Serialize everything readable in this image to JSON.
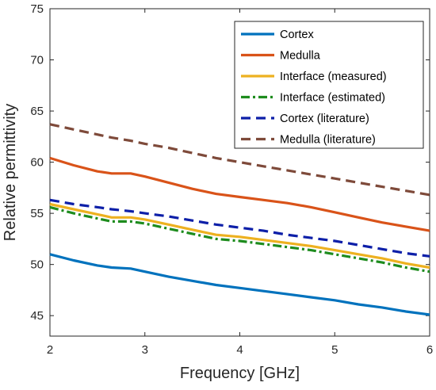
{
  "chart_data": {
    "type": "line",
    "xlabel": "Frequency [GHz]",
    "ylabel": "Relative permittivity",
    "xlim": [
      2,
      6
    ],
    "ylim": [
      43,
      75
    ],
    "xticks": [
      2,
      3,
      4,
      5,
      6
    ],
    "yticks": [
      45,
      50,
      55,
      60,
      65,
      70,
      75
    ],
    "grid": false,
    "legend_position": "top-right",
    "x": [
      2.0,
      2.25,
      2.5,
      2.65,
      2.85,
      3.0,
      3.25,
      3.5,
      3.75,
      4.0,
      4.25,
      4.5,
      4.75,
      5.0,
      5.25,
      5.5,
      5.75,
      6.0
    ],
    "series": [
      {
        "name": "Cortex",
        "color": "#0072BD",
        "dash": "solid",
        "values": [
          51.0,
          50.4,
          49.9,
          49.7,
          49.6,
          49.3,
          48.8,
          48.4,
          48.0,
          47.7,
          47.4,
          47.1,
          46.8,
          46.5,
          46.1,
          45.8,
          45.4,
          45.1
        ]
      },
      {
        "name": "Medulla",
        "color": "#D95319",
        "dash": "solid",
        "values": [
          60.4,
          59.7,
          59.1,
          58.9,
          58.9,
          58.6,
          58.0,
          57.4,
          56.9,
          56.6,
          56.3,
          56.0,
          55.6,
          55.1,
          54.6,
          54.1,
          53.7,
          53.3
        ]
      },
      {
        "name": "Interface (measured)",
        "color": "#EDB120",
        "dash": "solid",
        "values": [
          55.9,
          55.4,
          54.9,
          54.6,
          54.6,
          54.4,
          53.9,
          53.4,
          52.9,
          52.7,
          52.4,
          52.1,
          51.8,
          51.4,
          51.0,
          50.6,
          50.1,
          49.7
        ]
      },
      {
        "name": "Interface (estimated)",
        "color": "#1E8C1E",
        "dash": "dashdot",
        "values": [
          55.6,
          55.0,
          54.5,
          54.2,
          54.2,
          54.0,
          53.5,
          53.0,
          52.5,
          52.3,
          52.0,
          51.7,
          51.4,
          51.0,
          50.6,
          50.2,
          49.7,
          49.3
        ]
      },
      {
        "name": "Cortex (literature)",
        "color": "#0D1FA8",
        "dash": "dashed",
        "values": [
          56.3,
          55.9,
          55.6,
          55.4,
          55.2,
          55.0,
          54.7,
          54.3,
          53.9,
          53.6,
          53.3,
          52.9,
          52.6,
          52.3,
          51.9,
          51.5,
          51.1,
          50.8
        ]
      },
      {
        "name": "Medulla (literature)",
        "color": "#7E4A3A",
        "dash": "dashed",
        "values": [
          63.7,
          63.2,
          62.7,
          62.4,
          62.1,
          61.8,
          61.4,
          60.9,
          60.4,
          60.0,
          59.6,
          59.2,
          58.8,
          58.4,
          58.0,
          57.6,
          57.2,
          56.8
        ]
      }
    ]
  }
}
